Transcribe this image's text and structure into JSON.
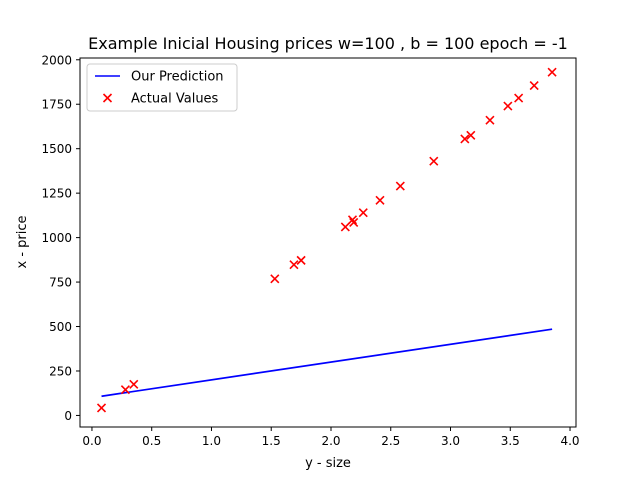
{
  "chart_data": {
    "type": "scatter",
    "title": "Example Inicial Housing prices w=100 , b = 100 epoch = -1",
    "xlabel": "y - size",
    "ylabel": "x - price",
    "xlim": [
      -0.1,
      4.05
    ],
    "ylim": [
      -65,
      2010
    ],
    "x_ticks": [
      0.0,
      0.5,
      1.0,
      1.5,
      2.0,
      2.5,
      3.0,
      3.5,
      4.0
    ],
    "x_tick_labels": [
      "0.0",
      "0.5",
      "1.0",
      "1.5",
      "2.0",
      "2.5",
      "3.0",
      "3.5",
      "4.0"
    ],
    "y_ticks": [
      0,
      250,
      500,
      750,
      1000,
      1250,
      1500,
      1750,
      2000
    ],
    "y_tick_labels": [
      "0",
      "250",
      "500",
      "750",
      "1000",
      "1250",
      "1500",
      "1750",
      "2000"
    ],
    "grid": false,
    "legend_position": "top-left",
    "series": [
      {
        "name": "Our Prediction",
        "kind": "line",
        "color": "#0000ff",
        "x": [
          0.08,
          3.85
        ],
        "y": [
          108,
          485
        ]
      },
      {
        "name": "Actual Values",
        "kind": "scatter",
        "marker": "x",
        "color": "#ff0000",
        "x": [
          0.08,
          0.28,
          0.35,
          1.53,
          1.69,
          1.75,
          2.12,
          2.18,
          2.19,
          2.27,
          2.41,
          2.58,
          2.86,
          3.12,
          3.17,
          3.33,
          3.48,
          3.57,
          3.7,
          3.85
        ],
        "y": [
          42,
          145,
          175,
          768,
          848,
          872,
          1060,
          1100,
          1085,
          1140,
          1210,
          1290,
          1430,
          1555,
          1575,
          1660,
          1740,
          1785,
          1855,
          1930
        ]
      }
    ]
  }
}
